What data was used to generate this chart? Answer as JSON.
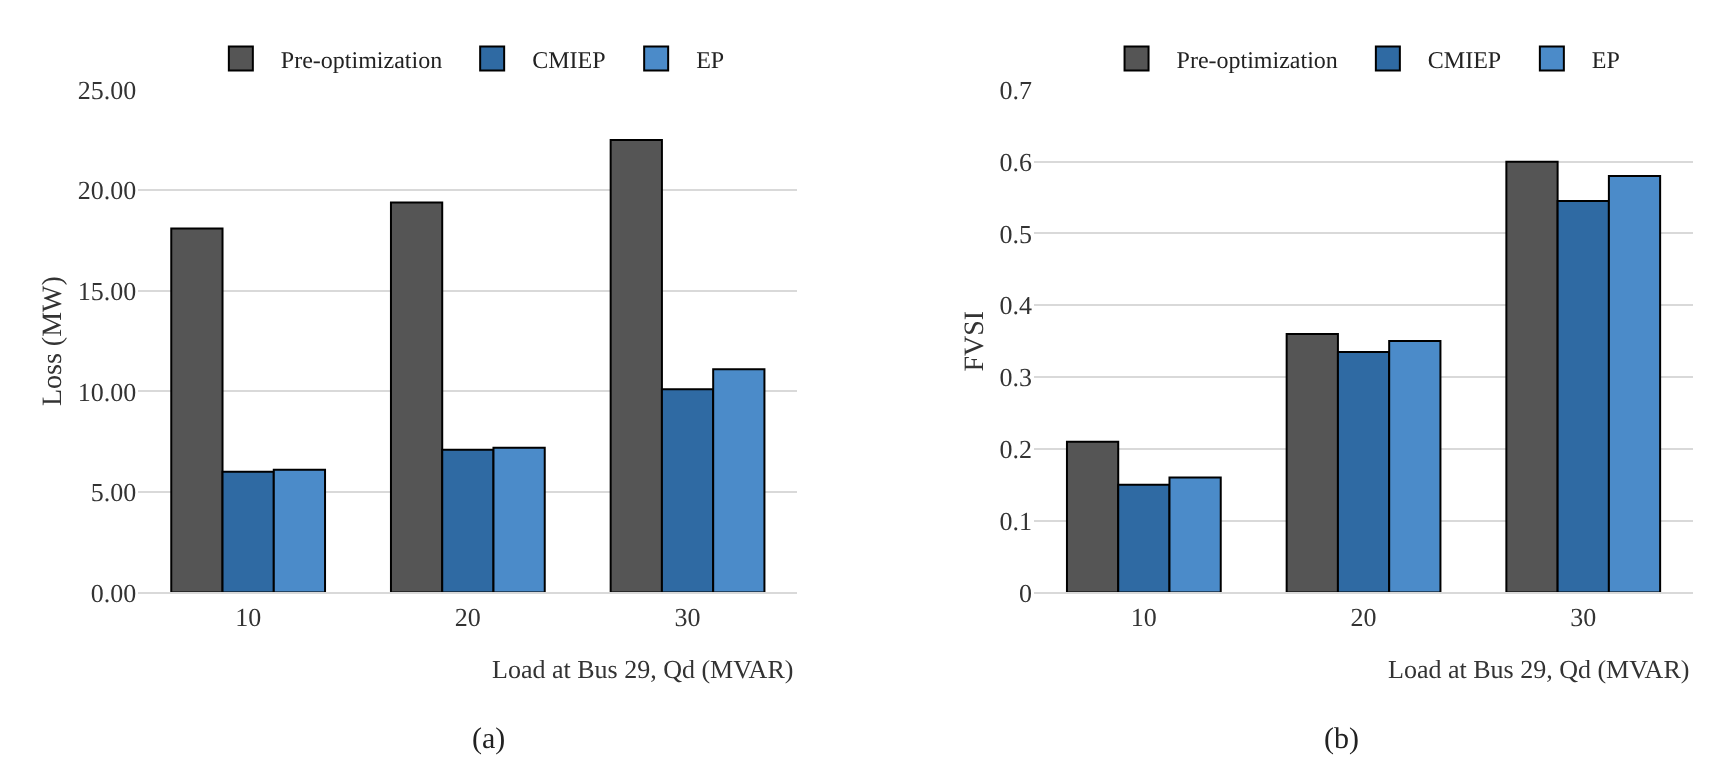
{
  "chart_data": [
    {
      "type": "bar",
      "xlabel": "Load at Bus 29, Qd (MVAR)",
      "ylabel": "Loss (MW)",
      "categories": [
        "10",
        "20",
        "30"
      ],
      "series": [
        {
          "name": "Pre-optimization",
          "color": "#555555",
          "values": [
            18.1,
            19.4,
            22.5
          ]
        },
        {
          "name": "CMIEP",
          "color": "#2f6aa3",
          "values": [
            6.0,
            7.1,
            10.1
          ]
        },
        {
          "name": "EP",
          "color": "#4b8bc9",
          "values": [
            6.1,
            7.2,
            11.1
          ]
        }
      ],
      "ylim": [
        0,
        25
      ],
      "yticks": [
        {
          "value": 0,
          "label": "0.00"
        },
        {
          "value": 5,
          "label": "5.00"
        },
        {
          "value": 10,
          "label": "10.00"
        },
        {
          "value": 15,
          "label": "15.00"
        },
        {
          "value": 20,
          "label": "20.00"
        },
        {
          "value": 25,
          "label": "25.00"
        }
      ],
      "grid": "y",
      "legend": "top",
      "annotations": [
        "(a)"
      ]
    },
    {
      "type": "bar",
      "xlabel": "Load at Bus 29, Qd (MVAR)",
      "ylabel": "FVSI",
      "categories": [
        "10",
        "20",
        "30"
      ],
      "series": [
        {
          "name": "Pre-optimization",
          "color": "#555555",
          "values": [
            0.21,
            0.36,
            0.6
          ]
        },
        {
          "name": "CMIEP",
          "color": "#2f6aa3",
          "values": [
            0.15,
            0.335,
            0.545
          ]
        },
        {
          "name": "EP",
          "color": "#4b8bc9",
          "values": [
            0.16,
            0.35,
            0.58
          ]
        }
      ],
      "ylim": [
        0,
        0.7
      ],
      "yticks": [
        0,
        0.1,
        0.2,
        0.3,
        0.4,
        0.5,
        0.6,
        0.7
      ],
      "grid": "y",
      "legend": "top",
      "annotations": [
        "(b)"
      ]
    }
  ]
}
